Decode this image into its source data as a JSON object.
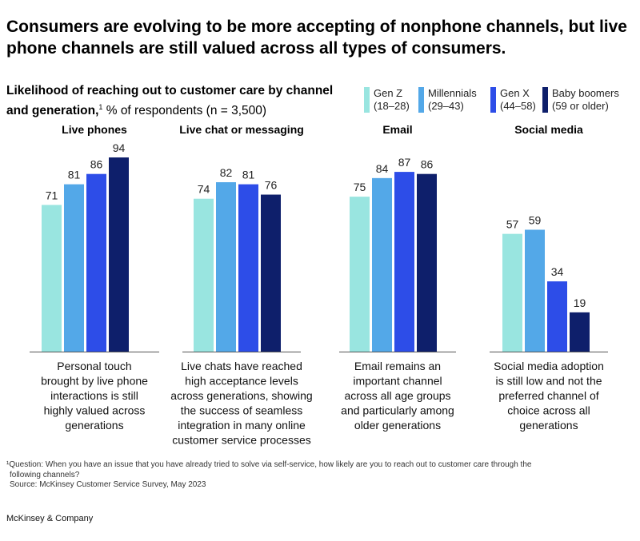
{
  "headline": "Consumers are evolving to be more accepting of nonphone channels, but live phone channels are still valued across all types of consumers.",
  "subtitle": {
    "bold": "Likelihood of reaching out to customer care by channel and generation,",
    "sup": "1",
    "rest": " % of respondents (n = 3,500)"
  },
  "legend": [
    {
      "name": "Gen Z",
      "range": "(18–28)",
      "color": "#99e5e0"
    },
    {
      "name": "Millennials",
      "range": "(29–43)",
      "color": "#53a8e8"
    },
    {
      "name": "Gen X",
      "range": "(44–58)",
      "color": "#2d4de8"
    },
    {
      "name": "Baby boomers",
      "range": "(59 or older)",
      "color": "#0e1f6b"
    }
  ],
  "chart_data": {
    "type": "bar",
    "categories": [
      "Gen Z",
      "Millennials",
      "Gen X",
      "Baby boomers"
    ],
    "ylim": [
      0,
      100
    ],
    "groups": [
      {
        "title": "Live phones",
        "values": [
          71,
          81,
          86,
          94
        ],
        "caption": [
          "Personal touch",
          "brought by live phone",
          "interactions is still",
          "highly valued across",
          "generations"
        ]
      },
      {
        "title": "Live chat or messaging",
        "values": [
          74,
          82,
          81,
          76
        ],
        "caption": [
          "Live chats have reached",
          "high acceptance levels",
          "across generations, showing",
          "the success of seamless",
          "integration in many online",
          "customer service processes"
        ]
      },
      {
        "title": "Email",
        "values": [
          75,
          84,
          87,
          86
        ],
        "caption": [
          "Email remains an",
          "important channel",
          "across all age groups",
          "and particularly among",
          "older generations"
        ]
      },
      {
        "title": "Social media",
        "values": [
          57,
          59,
          34,
          19
        ],
        "caption": [
          "Social media adoption",
          "is still low and not the",
          "preferred channel of",
          "choice across all",
          "generations"
        ]
      }
    ]
  },
  "footnote": {
    "line1": "¹Question: When you have an issue that you have already tried to solve via self-service, how likely are you to reach out to customer care through the",
    "line2": "following channels?",
    "source": "Source: McKinsey Customer Service Survey, May 2023"
  },
  "brand": "McKinsey & Company"
}
